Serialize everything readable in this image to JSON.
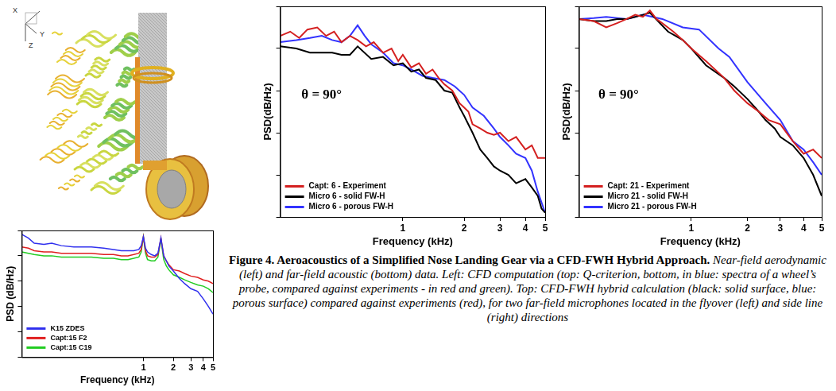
{
  "image": {
    "axis_labels": [
      "X",
      "Y",
      "Z"
    ]
  },
  "chart_data": [
    {
      "type": "line",
      "xlabel": "Frequency (kHz)",
      "ylabel": "PSD (dB/Hz)",
      "log": "x",
      "grid": false,
      "legend": "lower left",
      "tick_labels": "x",
      "xlim": [
        0.06,
        5
      ],
      "xticks": [
        1,
        2,
        3,
        4,
        5
      ],
      "ylim": [
        0,
        50
      ],
      "yticks": [
        0,
        10,
        20,
        30,
        40,
        50
      ],
      "series": [
        {
          "name": "K15 ZDES",
          "color": "#3030ee",
          "x": [
            0.06,
            0.07,
            0.08,
            0.1,
            0.12,
            0.15,
            0.2,
            0.3,
            0.4,
            0.5,
            0.6,
            0.7,
            0.8,
            0.9,
            0.95,
            1.0,
            1.05,
            1.1,
            1.2,
            1.3,
            1.4,
            1.5,
            1.6,
            1.7,
            1.8,
            2.0,
            2.3,
            2.6,
            3.0,
            3.5,
            4.0,
            4.5,
            5.0
          ],
          "values": [
            48.5,
            47,
            45,
            44.5,
            45,
            44,
            43.5,
            43.5,
            43,
            42.5,
            42,
            42,
            42,
            42.5,
            44,
            47.5,
            43,
            41.5,
            40.5,
            40,
            41,
            47,
            40,
            38,
            36,
            34,
            31,
            29,
            27,
            26,
            23,
            20,
            17
          ]
        },
        {
          "name": "Capt:15 F2",
          "color": "#e02020",
          "x": [
            0.06,
            0.07,
            0.08,
            0.1,
            0.12,
            0.15,
            0.2,
            0.3,
            0.4,
            0.5,
            0.6,
            0.7,
            0.8,
            0.9,
            0.95,
            1.0,
            1.05,
            1.1,
            1.2,
            1.3,
            1.4,
            1.5,
            1.6,
            1.7,
            1.8,
            2.0,
            2.3,
            2.6,
            3.0,
            3.5,
            4.0,
            4.5,
            5.0
          ],
          "values": [
            43.5,
            43,
            42,
            41.5,
            41.5,
            41,
            41,
            41,
            40.5,
            40.5,
            40,
            40,
            40.5,
            41,
            42.5,
            47.5,
            42,
            40,
            39.5,
            39.5,
            40.5,
            47,
            40,
            38,
            36.5,
            34.5,
            34,
            33,
            32,
            31.5,
            30.5,
            30,
            29
          ]
        },
        {
          "name": "Capt:15 C19",
          "color": "#22cc22",
          "x": [
            0.06,
            0.07,
            0.08,
            0.1,
            0.12,
            0.15,
            0.2,
            0.3,
            0.4,
            0.5,
            0.6,
            0.7,
            0.8,
            0.9,
            0.95,
            1.0,
            1.05,
            1.1,
            1.2,
            1.3,
            1.4,
            1.5,
            1.6,
            1.7,
            1.8,
            2.0,
            2.3,
            2.6,
            3.0,
            3.5,
            4.0,
            4.5,
            5.0
          ],
          "values": [
            41.5,
            41,
            40.5,
            40,
            40,
            39.5,
            39.5,
            39.5,
            39,
            39,
            38.5,
            38.5,
            39,
            39.5,
            41.5,
            47.5,
            41,
            38.5,
            38,
            38,
            39.5,
            46.5,
            38.5,
            36,
            34.5,
            32.5,
            31.5,
            30.5,
            29.5,
            28.5,
            28,
            27,
            25.5
          ]
        }
      ]
    },
    {
      "type": "line",
      "xlabel": "Frequency (kHz)",
      "ylabel": "PSD(dB/Hz)",
      "annotation": "θ = 90°",
      "log": "x",
      "grid": false,
      "legend": "lower left",
      "tick_labels": "x",
      "xlim": [
        0.25,
        5
      ],
      "xticks": [
        1,
        2,
        3,
        4,
        5
      ],
      "ylim": [
        0,
        50
      ],
      "yticks": [
        0,
        10,
        20,
        30,
        40,
        50
      ],
      "series": [
        {
          "name": "Capt: 6 - Experiment",
          "color": "#d42020",
          "x": [
            0.25,
            0.28,
            0.31,
            0.34,
            0.38,
            0.42,
            0.46,
            0.5,
            0.55,
            0.6,
            0.66,
            0.72,
            0.8,
            0.88,
            0.95,
            1.0,
            1.1,
            1.2,
            1.3,
            1.4,
            1.5,
            1.6,
            1.75,
            1.9,
            2.0,
            2.1,
            2.2,
            2.4,
            2.6,
            2.8,
            3.0,
            3.3,
            3.6,
            4.0,
            4.3,
            4.6,
            5.0
          ],
          "values": [
            43,
            44,
            42.5,
            44.5,
            45,
            43,
            44,
            41.5,
            43,
            42,
            40.5,
            41.5,
            39,
            40,
            37,
            38.5,
            35.5,
            36.5,
            34,
            35,
            33,
            31.5,
            30,
            27,
            26,
            25,
            22,
            21,
            20,
            19.5,
            20,
            18,
            19,
            16,
            17,
            14,
            14
          ]
        },
        {
          "name": "Micro 6 - solid FW-H",
          "color": "#000000",
          "x": [
            0.25,
            0.3,
            0.35,
            0.4,
            0.45,
            0.5,
            0.55,
            0.6,
            0.7,
            0.8,
            0.9,
            1.0,
            1.1,
            1.2,
            1.3,
            1.45,
            1.6,
            1.75,
            1.9,
            2.0,
            2.2,
            2.4,
            2.6,
            2.8,
            3.0,
            3.3,
            3.6,
            4.0,
            4.3,
            4.6,
            4.8,
            5.0
          ],
          "values": [
            40.5,
            40,
            39,
            39,
            39,
            38.5,
            38.5,
            40.5,
            37.5,
            38,
            36,
            36.5,
            34.5,
            35,
            33,
            32.5,
            30,
            29.5,
            26,
            24,
            20,
            16,
            14,
            12,
            11,
            10,
            8,
            9,
            7,
            5,
            2,
            1
          ]
        },
        {
          "name": "Micro 6 - porous FW-H",
          "color": "#3333ff",
          "x": [
            0.25,
            0.3,
            0.35,
            0.4,
            0.45,
            0.5,
            0.55,
            0.6,
            0.65,
            0.7,
            0.8,
            0.9,
            1.0,
            1.1,
            1.25,
            1.4,
            1.6,
            1.8,
            2.0,
            2.2,
            2.5,
            2.8,
            3.0,
            3.3,
            3.6,
            4.0,
            4.3,
            4.6,
            5.0
          ],
          "values": [
            41.5,
            42,
            42.5,
            43,
            42,
            41.5,
            43,
            45.5,
            43,
            41,
            39,
            36.5,
            36,
            35,
            33.5,
            33,
            32.5,
            31,
            29,
            26,
            24,
            21,
            19,
            17,
            15,
            14,
            11,
            6,
            1
          ]
        }
      ]
    },
    {
      "type": "line",
      "xlabel": "Frequency (kHz)",
      "ylabel": "PSD(dB/Hz)",
      "annotation": "θ = 90°",
      "log": "x",
      "grid": false,
      "legend": "lower left",
      "tick_labels": "x",
      "xlim": [
        0.25,
        5
      ],
      "xticks": [
        1,
        2,
        3,
        4,
        5
      ],
      "ylim": [
        0,
        50
      ],
      "yticks": [
        0,
        10,
        20,
        30,
        40,
        50
      ],
      "series": [
        {
          "name": "Capt: 21 - Experiment",
          "color": "#d42020",
          "x": [
            0.25,
            0.3,
            0.35,
            0.4,
            0.45,
            0.5,
            0.55,
            0.6,
            0.65,
            0.7,
            0.8,
            0.9,
            1.0,
            1.2,
            1.5,
            1.7,
            2.0,
            2.3,
            2.6,
            3.0,
            3.5,
            4.0,
            4.5,
            5.0
          ],
          "values": [
            47,
            46.5,
            45,
            46,
            47,
            48,
            47.5,
            49,
            47,
            46,
            44,
            42,
            40,
            37,
            33,
            30,
            27,
            25,
            23,
            22,
            18,
            15,
            16,
            14
          ]
        },
        {
          "name": "Micro 21 - solid FW-H",
          "color": "#000000",
          "x": [
            0.25,
            0.3,
            0.35,
            0.4,
            0.45,
            0.5,
            0.55,
            0.6,
            0.75,
            0.9,
            1.0,
            1.2,
            1.5,
            1.7,
            2.0,
            2.3,
            2.5,
            2.8,
            3.0,
            3.5,
            4.0,
            4.5,
            5.0
          ],
          "values": [
            47,
            46.5,
            46.5,
            47,
            47,
            47.5,
            48,
            48.5,
            44,
            42,
            40,
            36,
            33,
            31,
            28,
            25,
            23,
            21,
            19,
            17,
            14,
            10,
            5
          ]
        },
        {
          "name": "Micro 21 - porous FW-H",
          "color": "#3333ff",
          "x": [
            0.25,
            0.3,
            0.35,
            0.45,
            0.55,
            0.7,
            0.9,
            1.1,
            1.4,
            1.6,
            2.0,
            2.5,
            3.0,
            3.5,
            4.0,
            4.5,
            5.0
          ],
          "values": [
            47,
            47.2,
            47.5,
            47,
            48,
            47,
            45,
            44.5,
            40,
            38,
            32,
            27,
            23,
            18,
            16,
            13,
            10
          ]
        }
      ]
    }
  ],
  "figure_caption": {
    "title": "Figure 4. Aeroacoustics of a Simplified Nose Landing Gear via a CFD-FWH Hybrid Approach.",
    "text": "Near-field aerodynamic (left) and far-field acoustic (bottom) data. Left: CFD computation (top: Q-criterion, bottom, in blue: spectra of a wheel’s probe, compared against experiments - in red and green). Top: CFD-FWH hybrid calculation (black: solid surface, blue: porous surface) compared against experiments (red), for two far-field microphones located in the flyover (left) and side line (right) directions"
  }
}
